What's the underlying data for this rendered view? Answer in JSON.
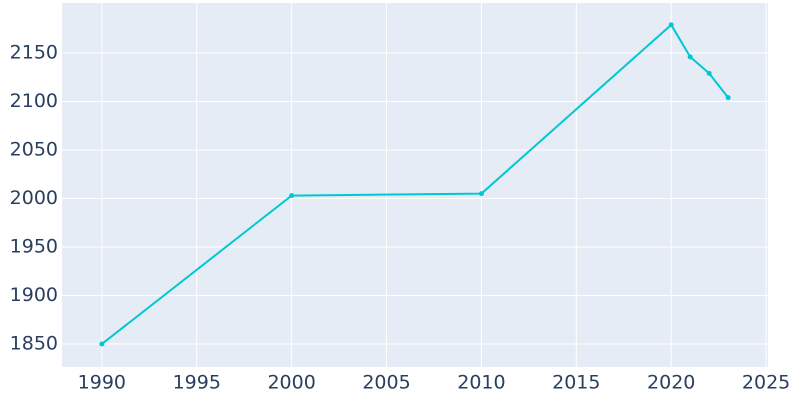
{
  "chart_data": {
    "type": "line",
    "x": [
      1990,
      2000,
      2010,
      2020,
      2021,
      2022,
      2023
    ],
    "series": [
      {
        "color": "#00c8d2",
        "values": [
          1850,
          2003,
          2005,
          2179,
          2146,
          2129,
          2104
        ]
      }
    ],
    "xlim": [
      1987.9,
      2025.1
    ],
    "xticks": [
      1990,
      1995,
      2000,
      2005,
      2010,
      2015,
      2020,
      2025
    ],
    "ylim": [
      1826.3,
      2201.5
    ],
    "yticks": [
      1850,
      1900,
      1950,
      2000,
      2050,
      2100,
      2150
    ],
    "grid": true,
    "background": "#e5ecf6"
  }
}
